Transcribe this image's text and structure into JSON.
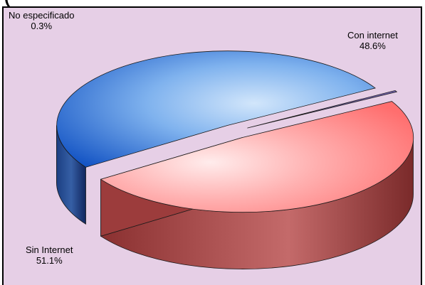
{
  "title_fragment": "(",
  "chart_data": {
    "type": "pie",
    "style": "3d-exploded",
    "slices": [
      {
        "label": "Con internet",
        "value_text": "48.6%",
        "value": 48.6,
        "color": "#ff8f8f"
      },
      {
        "label": "Sin Internet",
        "value_text": "51.1%",
        "value": 51.1,
        "color": "#2f66c8"
      },
      {
        "label": "No especificado",
        "value_text": "0.3%",
        "value": 0.3,
        "color": "#6a5aa8"
      }
    ],
    "background": "#e6cfe6"
  }
}
